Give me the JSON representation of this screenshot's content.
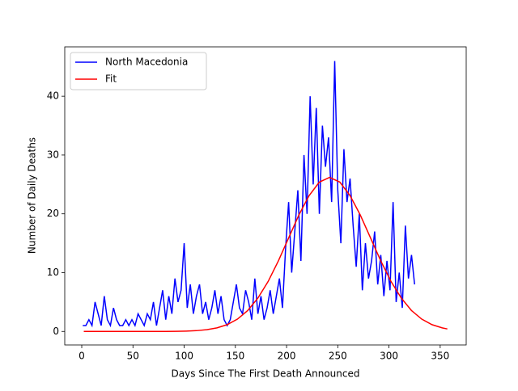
{
  "chart_data": {
    "type": "line",
    "xlabel": "Days Since The First Death Announced",
    "ylabel": "Number of Daily Deaths",
    "xlim": [
      -16.6,
      375.4
    ],
    "ylim": [
      -2.3,
      48.4
    ],
    "xticks": [
      0,
      50,
      100,
      150,
      200,
      250,
      300,
      350
    ],
    "yticks": [
      0,
      10,
      20,
      30,
      40
    ],
    "legend": "upper left",
    "series": [
      {
        "name": "North Macedonia",
        "color": "#0000ff",
        "x": [
          1,
          4,
          7,
          10,
          13,
          16,
          19,
          22,
          25,
          28,
          31,
          34,
          37,
          40,
          43,
          46,
          49,
          52,
          55,
          58,
          61,
          64,
          67,
          70,
          73,
          76,
          79,
          82,
          85,
          88,
          91,
          94,
          97,
          100,
          103,
          106,
          109,
          112,
          115,
          118,
          121,
          124,
          127,
          130,
          133,
          136,
          139,
          142,
          145,
          148,
          151,
          154,
          157,
          160,
          163,
          166,
          169,
          172,
          175,
          178,
          181,
          184,
          187,
          190,
          193,
          196,
          199,
          202,
          205,
          208,
          211,
          214,
          217,
          220,
          223,
          226,
          229,
          232,
          235,
          238,
          241,
          244,
          247,
          250,
          253,
          256,
          259,
          262,
          265,
          268,
          271,
          274,
          277,
          280,
          283,
          286,
          289,
          292,
          295,
          298,
          301,
          304,
          307,
          310,
          313,
          316,
          319,
          322,
          325
        ],
        "values": [
          1,
          1,
          2,
          1,
          5,
          3,
          1,
          6,
          2,
          1,
          4,
          2,
          1,
          1,
          2,
          1,
          2,
          1,
          3,
          2,
          1,
          3,
          2,
          5,
          1,
          4,
          7,
          2,
          6,
          3,
          9,
          5,
          7,
          15,
          4,
          8,
          3,
          6,
          8,
          3,
          5,
          2,
          4,
          7,
          3,
          6,
          2,
          1,
          2,
          5,
          8,
          4,
          3,
          7,
          5,
          2,
          9,
          3,
          6,
          2,
          4,
          7,
          3,
          6,
          9,
          4,
          14,
          22,
          10,
          17,
          24,
          12,
          30,
          20,
          40,
          25,
          38,
          20,
          35,
          28,
          33,
          22,
          46,
          24,
          15,
          31,
          22,
          26,
          18,
          11,
          20,
          7,
          15,
          9,
          12,
          17,
          8,
          13,
          6,
          12,
          7,
          22,
          5,
          10,
          4,
          18,
          9,
          13,
          8
        ]
      },
      {
        "name": "Fit",
        "color": "#ff0000",
        "x": [
          2,
          12,
          22,
          32,
          42,
          52,
          62,
          72,
          82,
          92,
          102,
          112,
          122,
          132,
          142,
          152,
          162,
          172,
          182,
          192,
          202,
          212,
          222,
          232,
          242,
          252,
          262,
          272,
          282,
          292,
          302,
          312,
          322,
          332,
          342,
          352,
          357
        ],
        "values": [
          0,
          0,
          0,
          0,
          0,
          0,
          0,
          0,
          0,
          0.02,
          0.06,
          0.13,
          0.29,
          0.6,
          1.15,
          2.09,
          3.55,
          5.67,
          8.5,
          12.0,
          15.9,
          19.8,
          23.1,
          25.4,
          26.2,
          25.4,
          23.1,
          19.8,
          15.9,
          12.0,
          8.5,
          5.67,
          3.55,
          2.09,
          1.15,
          0.6,
          0.42
        ]
      }
    ]
  }
}
